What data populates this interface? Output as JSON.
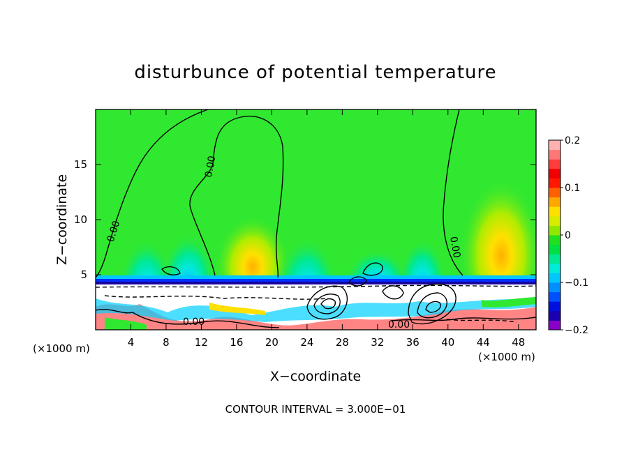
{
  "chart_data": {
    "type": "heatmap",
    "title": "disturbunce of potential temperature",
    "xlabel": "X−coordinate",
    "ylabel": "Z−coordinate",
    "x_unit_left": "(×1000 m)",
    "x_unit_right": "(×1000 m)",
    "x_ticks": [
      4,
      8,
      12,
      16,
      20,
      24,
      28,
      32,
      36,
      40,
      44,
      48
    ],
    "y_ticks": [
      5,
      10,
      15
    ],
    "xlim": [
      0,
      50
    ],
    "ylim": [
      0,
      20
    ],
    "colorbar": {
      "range": [
        -0.2,
        0.2
      ],
      "tick_labels": [
        "0.2",
        "0.1",
        "0",
        "−0.1",
        "−0.2"
      ],
      "tick_values": [
        0.2,
        0.1,
        0,
        -0.1,
        -0.2
      ],
      "colors": [
        "#8a00c8",
        "#1a00b0",
        "#0010e0",
        "#0050ff",
        "#0090ff",
        "#00c8ff",
        "#00ecd8",
        "#00e890",
        "#00e040",
        "#20e020",
        "#90e800",
        "#d8ec00",
        "#ffe000",
        "#ffa800",
        "#ff6000",
        "#ff1800",
        "#f00000",
        "#ff3c3c",
        "#ff7878",
        "#ffb0b0"
      ]
    },
    "contour_labels": [
      "0.00",
      "0.00",
      "0.00",
      "0.00",
      "0.00",
      "0.00"
    ],
    "contour_interval_text": "CONTOUR INTERVAL = 3.000E−01",
    "colors": {
      "background_field": "#30e830",
      "contour_line": "#000000"
    }
  }
}
